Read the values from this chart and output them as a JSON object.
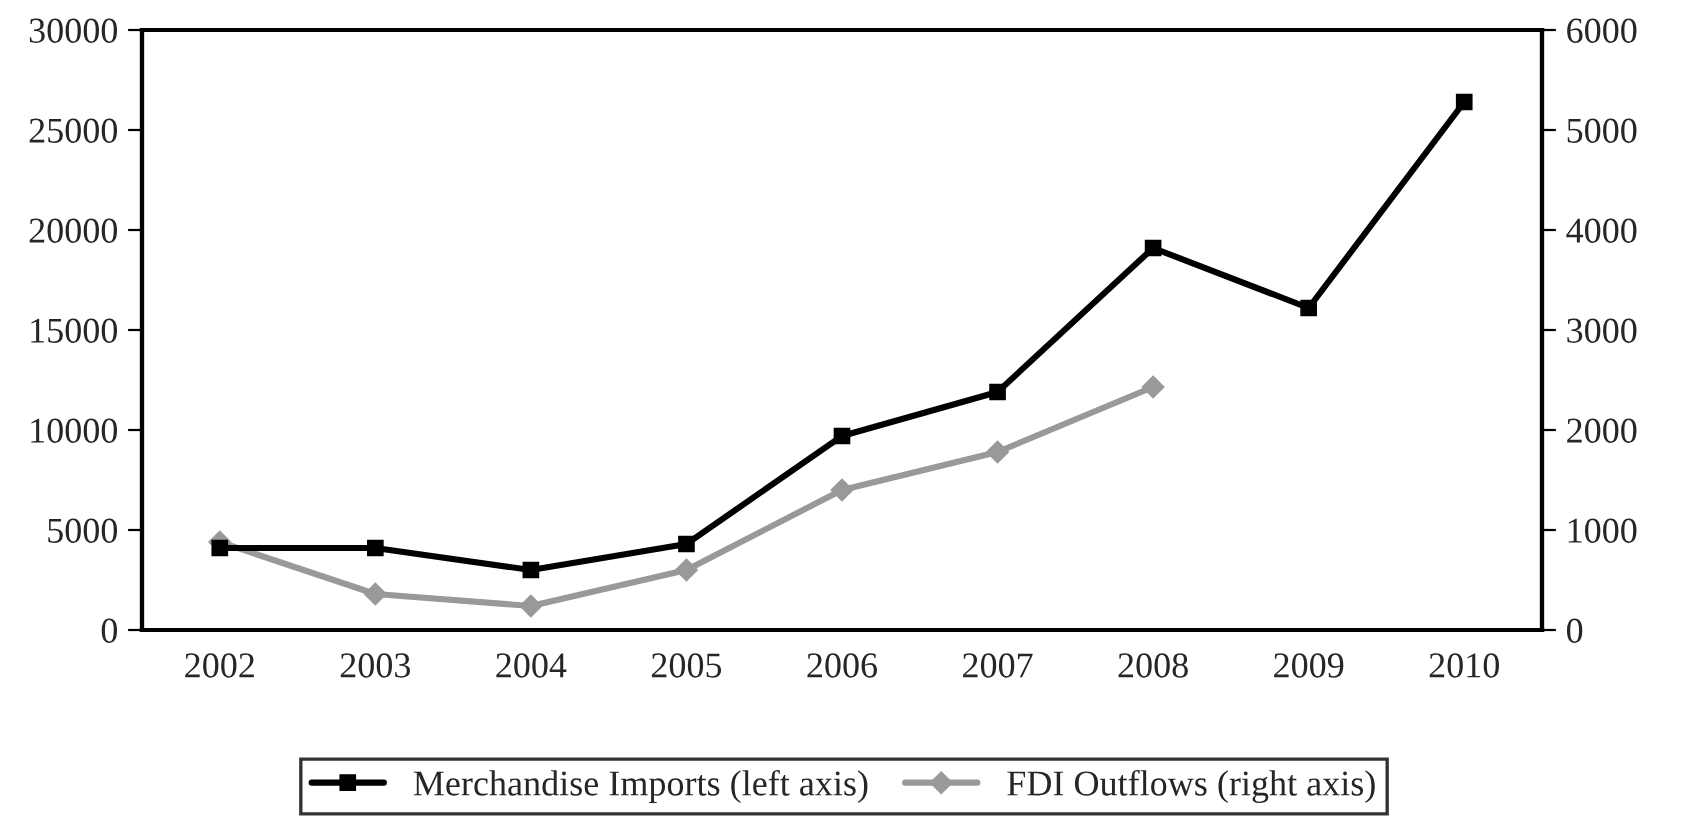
{
  "chart_data": {
    "type": "line",
    "categories": [
      "2002",
      "2003",
      "2004",
      "2005",
      "2006",
      "2007",
      "2008",
      "2009",
      "2010"
    ],
    "series": [
      {
        "name": "Merchandise Imports (left axis)",
        "color": "#000000",
        "marker": "square",
        "values": [
          4100,
          4100,
          3000,
          4300,
          9700,
          11900,
          19100,
          16100,
          26400
        ]
      },
      {
        "name": "FDI Outflows (right axis)",
        "color": "#999999",
        "marker": "diamond",
        "axis": "y2",
        "values": [
          880,
          360,
          240,
          600,
          1400,
          1780,
          2430,
          null,
          null
        ]
      }
    ],
    "ylim": [
      0,
      30000
    ],
    "yticks": [
      0,
      5000,
      10000,
      15000,
      20000,
      25000,
      30000
    ],
    "y2lim": [
      0,
      6000
    ],
    "y2ticks": [
      0,
      1000,
      2000,
      3000,
      4000,
      5000,
      6000
    ],
    "grid": false,
    "legend": "bottom",
    "line_style": "solid"
  }
}
